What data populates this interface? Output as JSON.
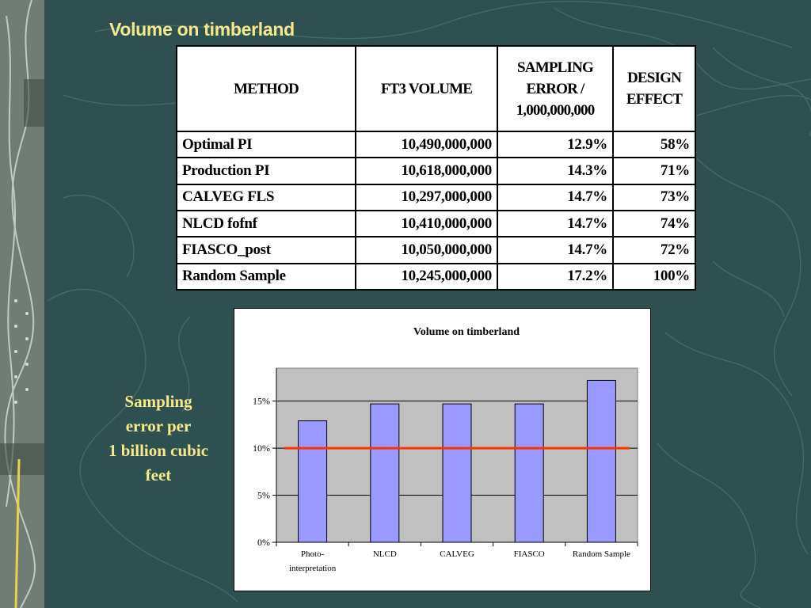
{
  "slide": {
    "title": "Volume on timberland",
    "side_note": [
      "Sampling",
      "error per",
      "1 billion cubic",
      "feet"
    ]
  },
  "table": {
    "headers": [
      "METHOD",
      "FT3 VOLUME",
      "SAMPLING ERROR / 1,000,000,000",
      "DESIGN EFFECT"
    ],
    "header_lines": [
      [
        "METHOD"
      ],
      [
        "FT3 VOLUME"
      ],
      [
        "SAMPLING",
        "ERROR /",
        "1,000,000,000"
      ],
      [
        "DESIGN",
        "EFFECT"
      ]
    ],
    "rows": [
      [
        "Optimal PI",
        "10,490,000,000",
        "12.9%",
        "58%"
      ],
      [
        "Production PI",
        "10,618,000,000",
        "14.3%",
        "71%"
      ],
      [
        "CALVEG FLS",
        "10,297,000,000",
        "14.7%",
        "73%"
      ],
      [
        "NLCD fofnf",
        "10,410,000,000",
        "14.7%",
        "74%"
      ],
      [
        "FIASCO_post",
        "10,050,000,000",
        "14.7%",
        "72%"
      ],
      [
        "Random Sample",
        "10,245,000,000",
        "17.2%",
        "100%"
      ]
    ]
  },
  "colors": {
    "background": "#2f5051",
    "title_text": "#f5e98a",
    "bar_fill": "#9999ff",
    "plot_area": "#c0c0c0",
    "reference_line": "#ff3300"
  },
  "chart_data": {
    "type": "bar",
    "title": "Volume on timberland",
    "categories": [
      "Photo-interpretation",
      "NLCD",
      "CALVEG",
      "FIASCO",
      "Random Sample"
    ],
    "category_lines": [
      [
        "Photo-",
        "interpretation"
      ],
      [
        "NLCD"
      ],
      [
        "CALVEG"
      ],
      [
        "FIASCO"
      ],
      [
        "Random Sample"
      ]
    ],
    "values": [
      12.9,
      14.7,
      14.7,
      14.7,
      17.2
    ],
    "reference_line": 10,
    "ylim": [
      0,
      18.5
    ],
    "yticks": [
      0,
      5,
      10,
      15
    ],
    "ytick_labels": [
      "0%",
      "5%",
      "10%",
      "15%"
    ],
    "grid": true,
    "xlabel": "",
    "ylabel": ""
  }
}
